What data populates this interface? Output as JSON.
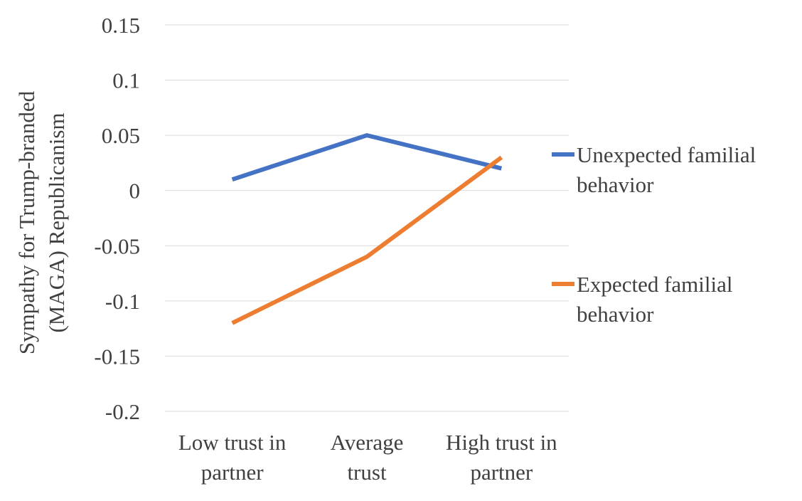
{
  "chart_data": {
    "type": "line",
    "title": "",
    "xlabel": "",
    "ylabel": [
      "Sympathy for Trump-branded",
      "(MAGA) Republicanism"
    ],
    "categories": [
      [
        "Low trust in",
        "partner"
      ],
      [
        "Average",
        "trust"
      ],
      [
        "High trust in",
        "partner"
      ]
    ],
    "ylim": [
      -0.2,
      0.15
    ],
    "yticks": [
      0.15,
      0.1,
      0.05,
      0,
      -0.05,
      -0.1,
      -0.15,
      -0.2
    ],
    "ytick_labels": [
      "0.15",
      "0.1",
      "0.05",
      "0",
      "-0.05",
      "-0.1",
      "-0.15",
      "-0.2"
    ],
    "grid": true,
    "legend_position": "right",
    "series": [
      {
        "name": "Unexpected familial behavior",
        "name_lines": [
          "Unexpected familial",
          "behavior"
        ],
        "values": [
          0.01,
          0.05,
          0.02
        ],
        "color": "#4472c4"
      },
      {
        "name": "Expected familial behavior",
        "name_lines": [
          "Expected familial",
          "behavior"
        ],
        "values": [
          -0.12,
          -0.06,
          0.03
        ],
        "color": "#ed7d31"
      }
    ]
  }
}
